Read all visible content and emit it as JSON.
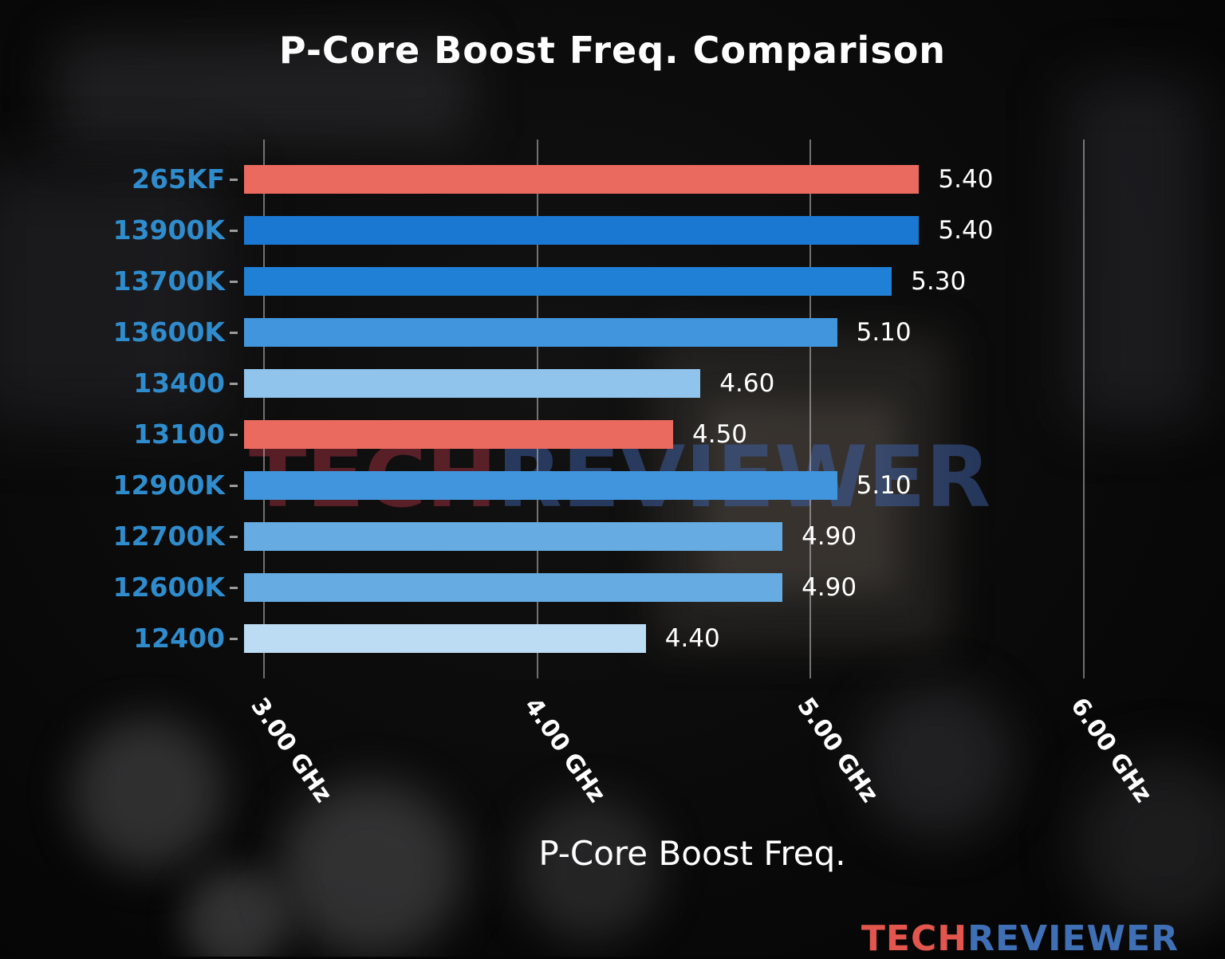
{
  "chart_data": {
    "type": "bar",
    "orientation": "horizontal",
    "title": "P-Core Boost Freq. Comparison",
    "xlabel": "P-Core Boost Freq.",
    "categories": [
      "265KF",
      "13900K",
      "13700K",
      "13600K",
      "13400",
      "13100",
      "12900K",
      "12700K",
      "12600K",
      "12400"
    ],
    "values": [
      5.4,
      5.4,
      5.3,
      5.1,
      4.6,
      4.5,
      5.1,
      4.9,
      4.9,
      4.4
    ],
    "value_labels": [
      "5.40",
      "5.40",
      "5.30",
      "5.10",
      "4.60",
      "4.50",
      "5.10",
      "4.90",
      "4.90",
      "4.40"
    ],
    "bar_colors": [
      "#ea6a5f",
      "#1a78d2",
      "#2080d6",
      "#4095dc",
      "#90c4ec",
      "#ea6a5f",
      "#4095dc",
      "#66abe2",
      "#66abe2",
      "#bcdcf4"
    ],
    "highlight_color": "#ea6a5f",
    "category_label_color": "#2f8ccd",
    "value_label_color": "#ffffff",
    "x_ticks": [
      {
        "value": 3,
        "label": "3.00 GHz"
      },
      {
        "value": 4,
        "label": "4.00 GHz"
      },
      {
        "value": 5,
        "label": "5.00 GHz"
      },
      {
        "value": 6,
        "label": "6.00 GHz"
      }
    ],
    "xlim": [
      2.93,
      6.21
    ],
    "unit": "GHz",
    "grid": true,
    "legend": false,
    "background": "dark blurred motherboard photo"
  },
  "watermarks": {
    "center": {
      "tech": "TECH",
      "reviewer": "REVIEWER",
      "tech_color": "#962d3c",
      "reviewer_color": "#3e62aa"
    },
    "footer": {
      "tech": "TECH",
      "reviewer": "REVIEWER",
      "tech_color": "#e2564d",
      "reviewer_color": "#3f6fb5"
    }
  }
}
